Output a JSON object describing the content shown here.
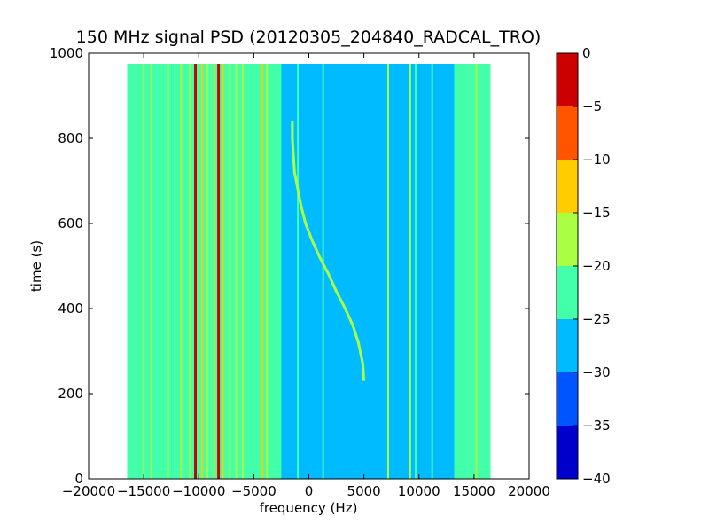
{
  "chart_data": {
    "type": "heatmap",
    "title": "150 MHz signal PSD (20120305_204840_RADCAL_TRO)",
    "xlabel": "frequency (Hz)",
    "ylabel": "time (s)",
    "xlim": [
      -20000,
      20000
    ],
    "ylim": [
      0,
      1000
    ],
    "xticks": [
      -20000,
      -15000,
      -10000,
      -5000,
      0,
      5000,
      10000,
      15000,
      20000
    ],
    "xtick_labels": [
      "−20000",
      "−15000",
      "−10000",
      "−5000",
      "0",
      "5000",
      "10000",
      "15000",
      "20000"
    ],
    "yticks": [
      0,
      200,
      400,
      600,
      800,
      1000
    ],
    "ytick_labels": [
      "0",
      "200",
      "400",
      "600",
      "800",
      "1000"
    ],
    "data_extent": {
      "x": [
        -16500,
        16500
      ],
      "y": [
        0,
        975
      ]
    },
    "background_level_db": -27,
    "edge_bands": [
      {
        "x": [
          -16500,
          -12500
        ],
        "level_db": -22
      },
      {
        "x": [
          13200,
          16500
        ],
        "level_db": -22
      }
    ],
    "interference_region": {
      "x": [
        -12500,
        -2500
      ],
      "level_db": -24
    },
    "constant_lines": [
      {
        "x": -15000,
        "level_db": -15
      },
      {
        "x": -14300,
        "level_db": -17
      },
      {
        "x": -12800,
        "level_db": -18
      },
      {
        "x": -11600,
        "level_db": -15
      },
      {
        "x": -10800,
        "level_db": -15
      },
      {
        "x": -10300,
        "level_db": -3
      },
      {
        "x": -9700,
        "level_db": -12
      },
      {
        "x": -9200,
        "level_db": -15
      },
      {
        "x": -8600,
        "level_db": -12
      },
      {
        "x": -8200,
        "level_db": 0
      },
      {
        "x": -7800,
        "level_db": -12
      },
      {
        "x": -7200,
        "level_db": -15
      },
      {
        "x": -6600,
        "level_db": -18
      },
      {
        "x": -6000,
        "level_db": -19
      },
      {
        "x": -5400,
        "level_db": -20
      },
      {
        "x": -4200,
        "level_db": -12
      },
      {
        "x": -3800,
        "level_db": -17
      },
      {
        "x": -3000,
        "level_db": -20
      },
      {
        "x": -1000,
        "level_db": -22
      },
      {
        "x": 1300,
        "level_db": -21
      },
      {
        "x": 7200,
        "level_db": -19
      },
      {
        "x": 9200,
        "level_db": -17
      },
      {
        "x": 9700,
        "level_db": -21
      },
      {
        "x": 11200,
        "level_db": -22
      },
      {
        "x": 13800,
        "level_db": -20
      },
      {
        "x": 15200,
        "level_db": -17
      }
    ],
    "drifting_signal": {
      "level_db": -18,
      "points": [
        {
          "t": 230,
          "f": 5000
        },
        {
          "t": 270,
          "f": 4900
        },
        {
          "t": 320,
          "f": 4500
        },
        {
          "t": 360,
          "f": 4000
        },
        {
          "t": 400,
          "f": 3300
        },
        {
          "t": 440,
          "f": 2500
        },
        {
          "t": 480,
          "f": 1800
        },
        {
          "t": 520,
          "f": 1000
        },
        {
          "t": 560,
          "f": 300
        },
        {
          "t": 600,
          "f": -300
        },
        {
          "t": 640,
          "f": -700
        },
        {
          "t": 680,
          "f": -1000
        },
        {
          "t": 720,
          "f": -1300
        },
        {
          "t": 760,
          "f": -1400
        },
        {
          "t": 800,
          "f": -1500
        },
        {
          "t": 840,
          "f": -1500
        }
      ]
    },
    "colorbar": {
      "levels": [
        0,
        -5,
        -10,
        -15,
        -20,
        -25,
        -30,
        -35,
        -40
      ],
      "level_labels": [
        "0",
        "−5",
        "−10",
        "−15",
        "−20",
        "−25",
        "−30",
        "−35",
        "−40"
      ],
      "band_colors": [
        "#cc0000",
        "#ff5500",
        "#ffcc00",
        "#aaff44",
        "#44ffaa",
        "#00bbff",
        "#0055ff",
        "#0000cc"
      ]
    }
  }
}
